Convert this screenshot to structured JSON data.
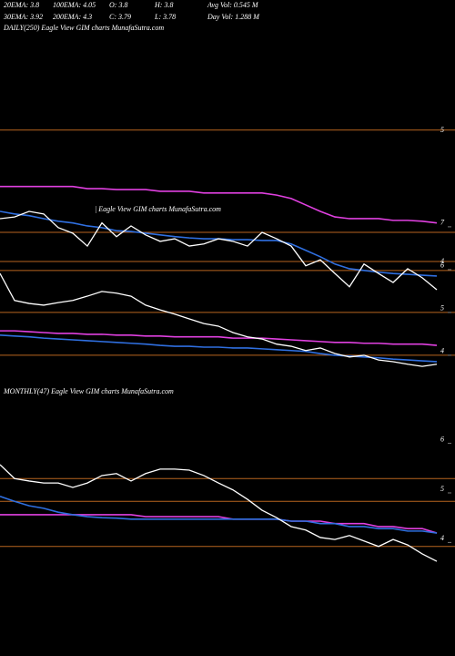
{
  "header": {
    "row1": [
      "20EMA: 3.8",
      "100EMA: 4.05",
      "O: 3.8",
      "H: 3.8",
      "Avg Vol: 0.545 M"
    ],
    "row2": [
      "30EMA: 3.92",
      "200EMA: 4.3",
      "C: 3.79",
      "L: 3.78",
      "Day Vol: 1.288 M"
    ]
  },
  "chart_data": [
    {
      "type": "line",
      "title": "DAILY(250) Eagle View GIM charts MunafaSutra.com",
      "annotation": "| Eagle View GIM charts MunafaSutra.com",
      "categories": [
        null,
        null,
        null,
        null,
        null,
        null,
        null,
        null,
        null,
        null,
        null,
        null,
        null,
        null,
        null,
        null,
        null,
        null,
        null,
        null,
        null,
        null,
        null,
        null,
        null,
        null,
        null,
        null,
        null,
        null,
        null
      ],
      "series": [
        {
          "color": "#e040e0",
          "values": [
            7.94,
            7.94,
            7.94,
            7.94,
            7.94,
            7.94,
            7.89,
            7.89,
            7.87,
            7.87,
            7.87,
            7.83,
            7.83,
            7.83,
            7.79,
            7.79,
            7.79,
            7.79,
            7.79,
            7.74,
            7.66,
            7.51,
            7.36,
            7.23,
            7.19,
            7.19,
            7.19,
            7.15,
            7.15,
            7.13,
            7.09
          ]
        },
        {
          "color": "#2f6fe0",
          "values": [
            7.36,
            7.3,
            7.26,
            7.19,
            7.13,
            7.09,
            7.02,
            6.98,
            6.91,
            6.89,
            6.85,
            6.81,
            6.77,
            6.74,
            6.72,
            6.72,
            6.7,
            6.7,
            6.68,
            6.68,
            6.6,
            6.45,
            6.3,
            6.13,
            6.02,
            5.98,
            5.94,
            5.91,
            5.89,
            5.87,
            5.85
          ]
        },
        {
          "color": "#ffffff",
          "values": [
            7.19,
            7.23,
            7.36,
            7.3,
            6.98,
            6.85,
            6.55,
            7.09,
            6.77,
            7.02,
            6.81,
            6.66,
            6.72,
            6.55,
            6.6,
            6.72,
            6.66,
            6.55,
            6.87,
            6.72,
            6.55,
            6.09,
            6.23,
            5.91,
            5.6,
            6.13,
            5.91,
            5.7,
            6.02,
            5.81,
            5.53
          ]
        },
        {
          "color": "#e040e0",
          "values": [
            4.57,
            4.57,
            4.55,
            4.53,
            4.51,
            4.51,
            4.49,
            4.49,
            4.47,
            4.47,
            4.45,
            4.45,
            4.43,
            4.43,
            4.43,
            4.43,
            4.4,
            4.4,
            4.4,
            4.38,
            4.36,
            4.34,
            4.32,
            4.3,
            4.3,
            4.28,
            4.28,
            4.26,
            4.26,
            4.26,
            4.23
          ]
        },
        {
          "color": "#2f6fe0",
          "values": [
            4.47,
            4.45,
            4.43,
            4.4,
            4.38,
            4.36,
            4.34,
            4.32,
            4.3,
            4.28,
            4.26,
            4.23,
            4.21,
            4.21,
            4.19,
            4.19,
            4.17,
            4.17,
            4.15,
            4.13,
            4.11,
            4.09,
            4.04,
            4.0,
            3.98,
            3.96,
            3.94,
            3.91,
            3.89,
            3.87,
            3.85
          ]
        },
        {
          "color": "#ffffff",
          "values": [
            5.91,
            5.28,
            5.21,
            5.17,
            5.23,
            5.28,
            5.38,
            5.49,
            5.45,
            5.38,
            5.17,
            5.06,
            4.96,
            4.85,
            4.74,
            4.68,
            4.53,
            4.43,
            4.38,
            4.26,
            4.21,
            4.11,
            4.17,
            4.04,
            3.96,
            4.0,
            3.89,
            3.85,
            3.79,
            3.74,
            3.79
          ]
        }
      ],
      "levels": [
        9.26,
        6.87,
        6.19,
        5.98,
        5.0,
        4.0
      ],
      "level_color": "#b8651f",
      "ylim": [
        3.36,
        9.53
      ],
      "yticks": [
        4,
        5,
        6,
        7
      ],
      "extra_tick_labels": [
        "5",
        "4"
      ]
    },
    {
      "type": "line",
      "title": "MONTHLY(47) Eagle View GIM charts MunafaSutra.com",
      "categories": [
        null,
        null,
        null,
        null,
        null,
        null,
        null,
        null,
        null,
        null,
        null,
        null,
        null,
        null,
        null,
        null,
        null,
        null,
        null,
        null,
        null,
        null,
        null,
        null,
        null,
        null,
        null,
        null,
        null,
        null,
        null
      ],
      "series": [
        {
          "color": "#e040e0",
          "values": [
            4.56,
            4.56,
            4.56,
            4.56,
            4.56,
            4.56,
            4.56,
            4.56,
            4.56,
            4.56,
            4.52,
            4.52,
            4.52,
            4.52,
            4.52,
            4.52,
            4.47,
            4.47,
            4.47,
            4.47,
            4.43,
            4.43,
            4.43,
            4.38,
            4.38,
            4.38,
            4.32,
            4.32,
            4.28,
            4.28,
            4.19
          ]
        },
        {
          "color": "#2f6fe0",
          "values": [
            4.93,
            4.83,
            4.74,
            4.69,
            4.61,
            4.56,
            4.52,
            4.5,
            4.49,
            4.47,
            4.47,
            4.47,
            4.47,
            4.47,
            4.47,
            4.47,
            4.47,
            4.47,
            4.47,
            4.47,
            4.43,
            4.43,
            4.38,
            4.38,
            4.32,
            4.32,
            4.28,
            4.28,
            4.23,
            4.23,
            4.19
          ]
        },
        {
          "color": "#ffffff",
          "values": [
            5.57,
            5.29,
            5.24,
            5.2,
            5.2,
            5.11,
            5.2,
            5.35,
            5.39,
            5.24,
            5.39,
            5.48,
            5.48,
            5.46,
            5.35,
            5.2,
            5.06,
            4.87,
            4.65,
            4.5,
            4.32,
            4.25,
            4.1,
            4.06,
            4.14,
            4.03,
            3.92,
            4.06,
            3.95,
            3.77,
            3.62
          ]
        }
      ],
      "levels": [
        5.29,
        4.83,
        3.92
      ],
      "level_color": "#b8651f",
      "ylim": [
        3.18,
        7.04
      ],
      "yticks": [
        4,
        5,
        6
      ]
    }
  ]
}
